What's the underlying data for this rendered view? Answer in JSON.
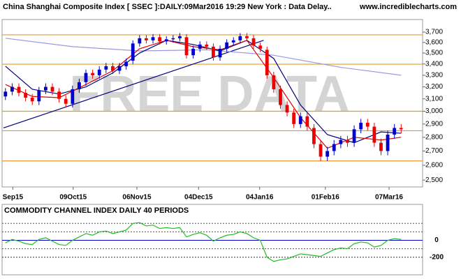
{
  "chart_data": [
    {
      "type": "candlestick",
      "title": "China Shanghai Composite Index [ SSEC ]:DAILY:09Mar2016 19:29 New York : Data Delay..",
      "source": "www.incrediblecharts.com",
      "watermark": "FREE DATA",
      "open": [
        3120,
        3160,
        3200,
        3150,
        3110,
        3080,
        3170,
        3200,
        3160,
        3100,
        3060,
        3180,
        3240,
        3320,
        3300,
        3350,
        3380,
        3340,
        3380,
        3430,
        3590,
        3640,
        3620,
        3650,
        3610,
        3630,
        3640,
        3650,
        3480,
        3540,
        3580,
        3560,
        3460,
        3540,
        3600,
        3620,
        3660,
        3640,
        3570,
        3530,
        3300,
        3180,
        3050,
        2990,
        2900,
        2960,
        2870,
        2750,
        2660,
        2700,
        2750,
        2780,
        2760,
        2860,
        2910,
        2880,
        2760,
        2700,
        2820,
        2870
      ],
      "high": [
        3190,
        3230,
        3230,
        3180,
        3140,
        3200,
        3230,
        3230,
        3190,
        3130,
        3210,
        3270,
        3350,
        3350,
        3380,
        3410,
        3410,
        3410,
        3450,
        3620,
        3670,
        3670,
        3680,
        3680,
        3660,
        3670,
        3690,
        3680,
        3570,
        3610,
        3610,
        3590,
        3570,
        3630,
        3650,
        3690,
        3690,
        3670,
        3600,
        3560,
        3330,
        3210,
        3080,
        3020,
        2990,
        2990,
        2900,
        2780,
        2730,
        2780,
        2810,
        2810,
        2890,
        2940,
        2940,
        2910,
        2790,
        2850,
        2900,
        2900
      ],
      "low": [
        3090,
        3130,
        3120,
        3080,
        3050,
        3050,
        3140,
        3130,
        3070,
        3030,
        3030,
        3150,
        3210,
        3270,
        3270,
        3320,
        3310,
        3310,
        3350,
        3400,
        3560,
        3590,
        3590,
        3580,
        3580,
        3600,
        3610,
        3450,
        3450,
        3510,
        3530,
        3430,
        3430,
        3510,
        3570,
        3590,
        3610,
        3540,
        3510,
        3270,
        3150,
        3020,
        2960,
        2870,
        2870,
        2850,
        2720,
        2630,
        2630,
        2670,
        2720,
        2730,
        2730,
        2830,
        2850,
        2730,
        2670,
        2670,
        2790,
        2830
      ],
      "close": [
        3160,
        3200,
        3150,
        3110,
        3080,
        3170,
        3200,
        3160,
        3100,
        3060,
        3180,
        3240,
        3320,
        3300,
        3350,
        3380,
        3340,
        3380,
        3420,
        3590,
        3640,
        3620,
        3650,
        3610,
        3630,
        3640,
        3660,
        3480,
        3540,
        3580,
        3560,
        3460,
        3540,
        3600,
        3620,
        3660,
        3640,
        3570,
        3540,
        3300,
        3180,
        3050,
        2990,
        2900,
        2960,
        2880,
        2750,
        2660,
        2700,
        2750,
        2780,
        2760,
        2860,
        2910,
        2880,
        2760,
        2700,
        2820,
        2870,
        2860
      ],
      "up_color": "#0000cc",
      "down_color": "#ee0000",
      "log_scale": true,
      "ylim": [
        2455,
        3825
      ],
      "yticks": [
        {
          "value": 3700,
          "label": "3,700"
        },
        {
          "value": 3600,
          "label": "3,600"
        },
        {
          "value": 3500,
          "label": "3,500"
        },
        {
          "value": 3400,
          "label": "3,400"
        },
        {
          "value": 3300,
          "label": "3,300"
        },
        {
          "value": 3200,
          "label": "3,200"
        },
        {
          "value": 3100,
          "label": "3,100"
        },
        {
          "value": 3000,
          "label": "3,000"
        },
        {
          "value": 2900,
          "label": "2,900"
        },
        {
          "value": 2800,
          "label": "2,800"
        },
        {
          "value": 2700,
          "label": "2,700"
        },
        {
          "value": 2600,
          "label": "2,600"
        },
        {
          "value": 2500,
          "label": "2,500"
        }
      ],
      "xlim": [
        -0.5,
        62.2
      ],
      "xticks": [
        {
          "value": 1.1,
          "label": "Sep15"
        },
        {
          "value": 10.1,
          "label": "09Oct15"
        },
        {
          "value": 19.6,
          "label": "06Nov15"
        },
        {
          "value": 28.8,
          "label": "04Dec15"
        },
        {
          "value": 37.9,
          "label": "04Jan16"
        },
        {
          "value": 47.7,
          "label": "01Feb16"
        },
        {
          "value": 57.2,
          "label": "07Mar16"
        }
      ],
      "lines": [
        {
          "color": "#9999dd",
          "x": [
            0,
            10,
            20,
            30,
            40,
            50,
            59
          ],
          "values": [
            3640,
            3560,
            3520,
            3530,
            3480,
            3370,
            3300
          ]
        },
        {
          "color": "#000080",
          "x": [
            0,
            4,
            8,
            12,
            16,
            20,
            24,
            28,
            32,
            36,
            40,
            44,
            48,
            52,
            56,
            59
          ],
          "values": [
            3380,
            3180,
            3140,
            3200,
            3320,
            3500,
            3620,
            3580,
            3520,
            3620,
            3450,
            3050,
            2820,
            2760,
            2840,
            2830
          ]
        },
        {
          "color": "#dd0000",
          "x": [
            0,
            4,
            8,
            12,
            16,
            20,
            24,
            28,
            32,
            36,
            40,
            44,
            48,
            52,
            56,
            59
          ],
          "values": [
            3220,
            3120,
            3110,
            3220,
            3340,
            3540,
            3620,
            3560,
            3530,
            3620,
            3280,
            2950,
            2720,
            2800,
            2780,
            2800
          ]
        }
      ],
      "hlines": {
        "color": "#e39a2c",
        "values": [
          3673,
          3398,
          3000,
          2849,
          2630
        ]
      },
      "trendline": {
        "color": "#000080",
        "x": [
          -0.3,
          38.5
        ],
        "values": [
          2870,
          3620
        ]
      }
    },
    {
      "type": "line",
      "title": "COMMODITY CHANNEL INDEX DAILY 40 PERIODS",
      "values": [
        -30,
        10,
        -10,
        -40,
        -50,
        10,
        30,
        -10,
        -50,
        -60,
        0,
        40,
        80,
        60,
        100,
        110,
        80,
        100,
        120,
        200,
        210,
        170,
        180,
        140,
        150,
        140,
        150,
        40,
        70,
        90,
        60,
        -10,
        30,
        60,
        70,
        100,
        80,
        30,
        0,
        -200,
        -250,
        -230,
        -220,
        -190,
        -160,
        -170,
        -180,
        -190,
        -150,
        -110,
        -90,
        -100,
        -40,
        -20,
        -30,
        -80,
        -60,
        0,
        20,
        10
      ],
      "color": "#22bb22",
      "ylim": [
        -408,
        425
      ],
      "yticks": [
        0,
        -200
      ],
      "zero_color": "#0000cc",
      "levels": [
        200,
        100,
        -100,
        -200
      ],
      "xlim": [
        -0.5,
        62.2
      ]
    }
  ]
}
